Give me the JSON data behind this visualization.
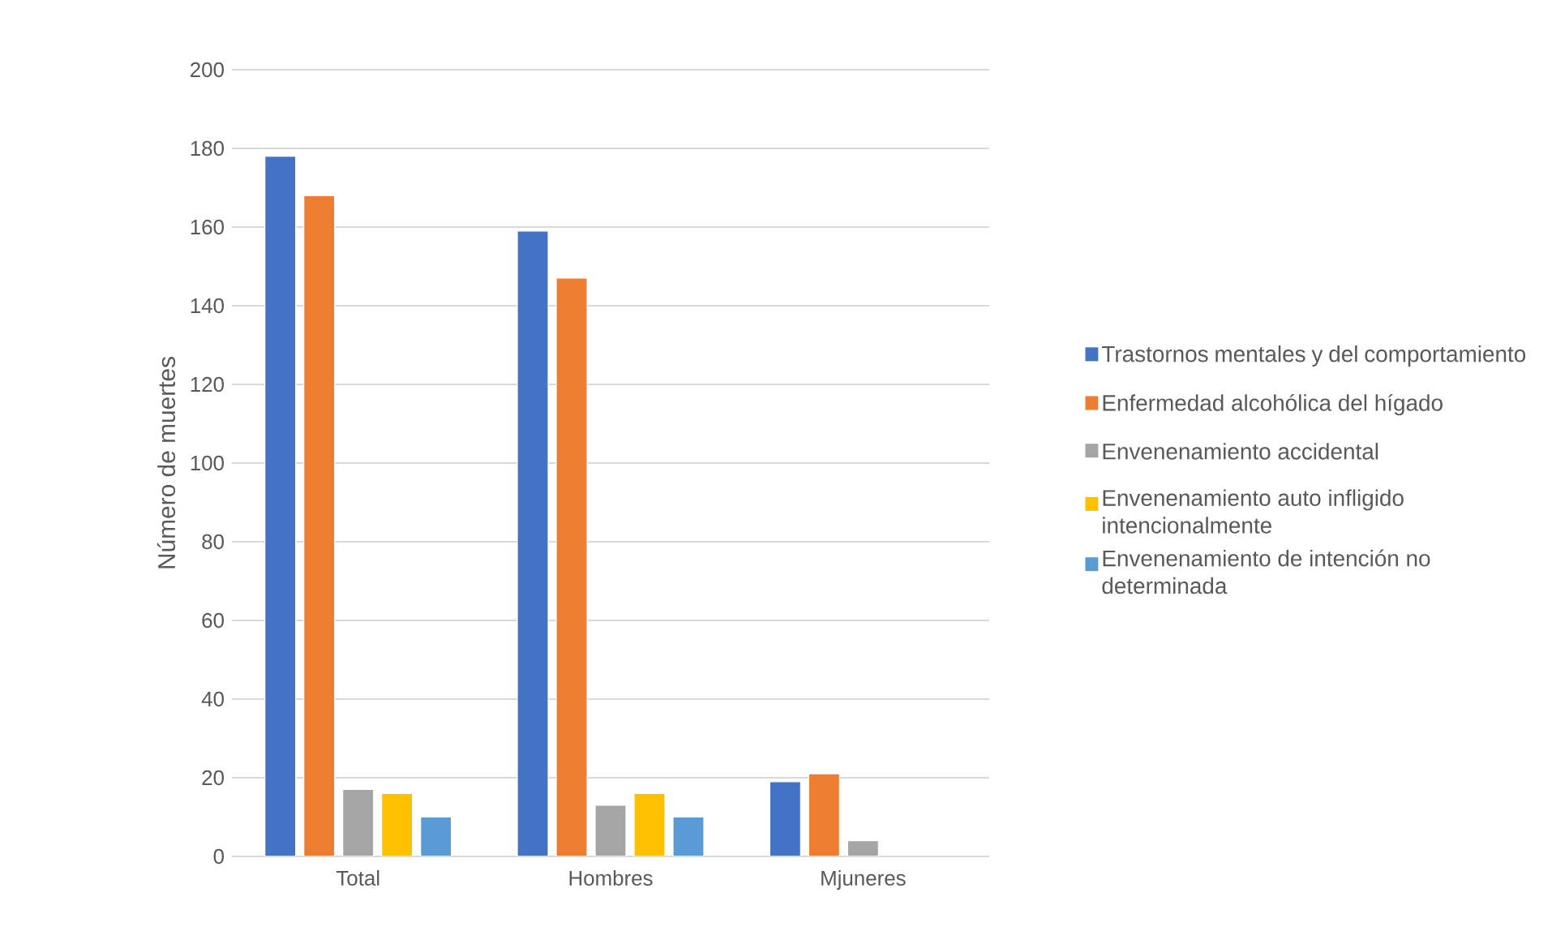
{
  "chart_data": {
    "type": "bar",
    "ylabel": "Número de muertes",
    "categories": [
      "Total",
      "Hombres",
      "Mjuneres"
    ],
    "series": [
      {
        "name": "Trastornos mentales y del comportamiento",
        "color": "#4472c4",
        "values": [
          178,
          159,
          19
        ]
      },
      {
        "name": "Enfermedad alcohólica del hígado",
        "color": "#ed7d31",
        "values": [
          168,
          147,
          21
        ]
      },
      {
        "name": "Envenenamiento accidental",
        "color": "#a5a5a5",
        "values": [
          17,
          13,
          4
        ]
      },
      {
        "name": "Envenenamiento auto infligido intencionalmente",
        "color": "#ffc000",
        "values": [
          16,
          16,
          null
        ]
      },
      {
        "name": "Envenenamiento de intención no determinada",
        "color": "#5b9bd5",
        "values": [
          10,
          10,
          null
        ]
      }
    ],
    "ylim": [
      0,
      200
    ],
    "yticks": [
      0,
      20,
      40,
      60,
      80,
      100,
      120,
      140,
      160,
      180,
      200
    ],
    "grid": "y",
    "legend": "right"
  }
}
